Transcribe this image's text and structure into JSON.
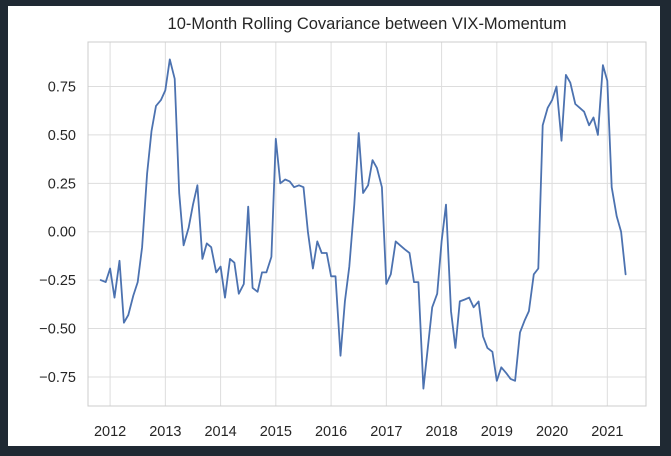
{
  "chart_data": {
    "type": "line",
    "title": "10-Month Rolling Covariance between VIX-Momentum",
    "xlabel": "",
    "ylabel": "",
    "xlim": [
      2011.6,
      2021.7
    ],
    "ylim": [
      -0.9,
      0.98
    ],
    "x_ticks": [
      "2012",
      "2013",
      "2014",
      "2015",
      "2016",
      "2017",
      "2018",
      "2019",
      "2020",
      "2021"
    ],
    "y_ticks": [
      0.75,
      0.5,
      0.25,
      0.0,
      -0.25,
      -0.5,
      -0.75
    ],
    "y_tick_labels": [
      "0.75",
      "0.50",
      "0.25",
      "0.00",
      "−0.25",
      "−0.50",
      "−0.75"
    ],
    "grid": true,
    "line_color": "#4c72b0",
    "series": [
      {
        "points": [
          [
            2011.83,
            -0.25
          ],
          [
            2011.92,
            -0.26
          ],
          [
            2012.0,
            -0.19
          ],
          [
            2012.08,
            -0.34
          ],
          [
            2012.17,
            -0.15
          ],
          [
            2012.25,
            -0.47
          ],
          [
            2012.33,
            -0.43
          ],
          [
            2012.42,
            -0.33
          ],
          [
            2012.5,
            -0.26
          ],
          [
            2012.58,
            -0.08
          ],
          [
            2012.67,
            0.3
          ],
          [
            2012.75,
            0.52
          ],
          [
            2012.83,
            0.65
          ],
          [
            2012.92,
            0.68
          ],
          [
            2013.0,
            0.73
          ],
          [
            2013.08,
            0.89
          ],
          [
            2013.17,
            0.79
          ],
          [
            2013.25,
            0.2
          ],
          [
            2013.33,
            -0.07
          ],
          [
            2013.42,
            0.02
          ],
          [
            2013.5,
            0.14
          ],
          [
            2013.58,
            0.24
          ],
          [
            2013.67,
            -0.14
          ],
          [
            2013.75,
            -0.06
          ],
          [
            2013.83,
            -0.08
          ],
          [
            2013.92,
            -0.21
          ],
          [
            2014.0,
            -0.18
          ],
          [
            2014.08,
            -0.34
          ],
          [
            2014.17,
            -0.14
          ],
          [
            2014.25,
            -0.16
          ],
          [
            2014.33,
            -0.32
          ],
          [
            2014.42,
            -0.27
          ],
          [
            2014.5,
            0.13
          ],
          [
            2014.58,
            -0.29
          ],
          [
            2014.67,
            -0.31
          ],
          [
            2014.75,
            -0.21
          ],
          [
            2014.83,
            -0.21
          ],
          [
            2014.92,
            -0.13
          ],
          [
            2015.0,
            0.48
          ],
          [
            2015.08,
            0.25
          ],
          [
            2015.17,
            0.27
          ],
          [
            2015.25,
            0.26
          ],
          [
            2015.33,
            0.23
          ],
          [
            2015.42,
            0.24
          ],
          [
            2015.5,
            0.23
          ],
          [
            2015.58,
            0.0
          ],
          [
            2015.67,
            -0.19
          ],
          [
            2015.75,
            -0.05
          ],
          [
            2015.83,
            -0.11
          ],
          [
            2015.92,
            -0.11
          ],
          [
            2016.0,
            -0.23
          ],
          [
            2016.08,
            -0.23
          ],
          [
            2016.17,
            -0.64
          ],
          [
            2016.25,
            -0.36
          ],
          [
            2016.33,
            -0.18
          ],
          [
            2016.42,
            0.14
          ],
          [
            2016.5,
            0.51
          ],
          [
            2016.58,
            0.2
          ],
          [
            2016.67,
            0.24
          ],
          [
            2016.75,
            0.37
          ],
          [
            2016.83,
            0.33
          ],
          [
            2016.92,
            0.23
          ],
          [
            2017.0,
            -0.27
          ],
          [
            2017.08,
            -0.22
          ],
          [
            2017.17,
            -0.05
          ],
          [
            2017.25,
            -0.07
          ],
          [
            2017.33,
            -0.09
          ],
          [
            2017.42,
            -0.11
          ],
          [
            2017.5,
            -0.26
          ],
          [
            2017.58,
            -0.26
          ],
          [
            2017.67,
            -0.81
          ],
          [
            2017.75,
            -0.6
          ],
          [
            2017.83,
            -0.39
          ],
          [
            2017.92,
            -0.32
          ],
          [
            2018.0,
            -0.05
          ],
          [
            2018.08,
            0.14
          ],
          [
            2018.17,
            -0.41
          ],
          [
            2018.25,
            -0.6
          ],
          [
            2018.33,
            -0.36
          ],
          [
            2018.42,
            -0.35
          ],
          [
            2018.5,
            -0.34
          ],
          [
            2018.58,
            -0.39
          ],
          [
            2018.67,
            -0.36
          ],
          [
            2018.75,
            -0.54
          ],
          [
            2018.83,
            -0.6
          ],
          [
            2018.92,
            -0.62
          ],
          [
            2019.0,
            -0.77
          ],
          [
            2019.08,
            -0.7
          ],
          [
            2019.17,
            -0.73
          ],
          [
            2019.25,
            -0.76
          ],
          [
            2019.33,
            -0.77
          ],
          [
            2019.42,
            -0.52
          ],
          [
            2019.5,
            -0.46
          ],
          [
            2019.58,
            -0.41
          ],
          [
            2019.67,
            -0.22
          ],
          [
            2019.75,
            -0.19
          ],
          [
            2019.83,
            0.55
          ],
          [
            2019.92,
            0.64
          ],
          [
            2020.0,
            0.68
          ],
          [
            2020.08,
            0.75
          ],
          [
            2020.17,
            0.47
          ],
          [
            2020.25,
            0.81
          ],
          [
            2020.33,
            0.77
          ],
          [
            2020.42,
            0.66
          ],
          [
            2020.5,
            0.64
          ],
          [
            2020.58,
            0.62
          ],
          [
            2020.67,
            0.55
          ],
          [
            2020.75,
            0.59
          ],
          [
            2020.83,
            0.5
          ],
          [
            2020.92,
            0.86
          ],
          [
            2021.0,
            0.78
          ],
          [
            2021.08,
            0.23
          ],
          [
            2021.17,
            0.08
          ],
          [
            2021.25,
            0.0
          ],
          [
            2021.33,
            -0.22
          ]
        ]
      }
    ]
  }
}
